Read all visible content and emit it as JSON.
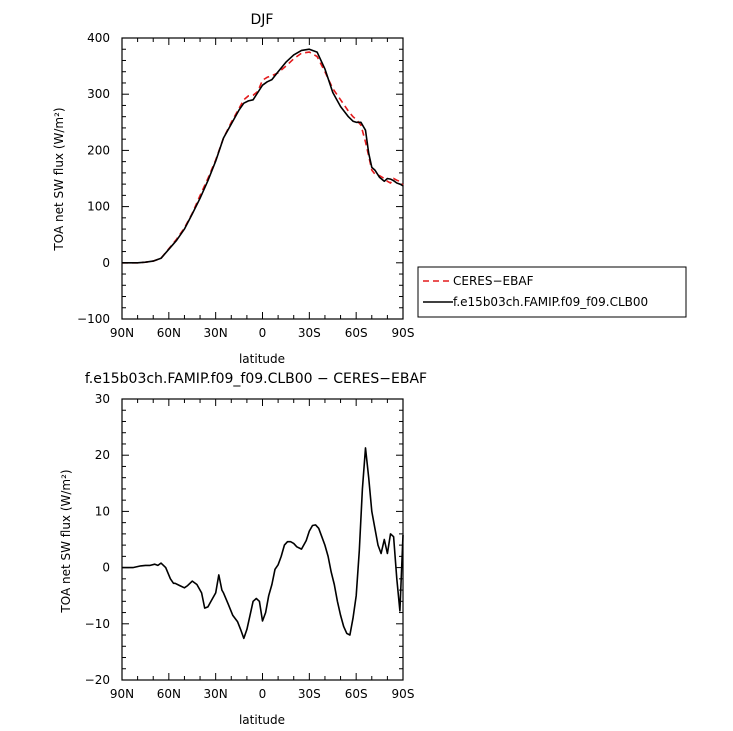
{
  "chart_data": [
    {
      "type": "line",
      "title": "DJF",
      "xlabel": "latitude",
      "ylabel": "TOA net SW flux (W/m²)",
      "xlim": [
        90,
        -90
      ],
      "ylim": [
        -100,
        400
      ],
      "x_ticks": [
        {
          "v": 90,
          "label": "90N"
        },
        {
          "v": 60,
          "label": "60N"
        },
        {
          "v": 30,
          "label": "30N"
        },
        {
          "v": 0,
          "label": "0"
        },
        {
          "v": -30,
          "label": "30S"
        },
        {
          "v": -60,
          "label": "60S"
        },
        {
          "v": -90,
          "label": "90S"
        }
      ],
      "y_ticks": [
        {
          "v": -100,
          "label": "−100"
        },
        {
          "v": 0,
          "label": "0"
        },
        {
          "v": 100,
          "label": "100"
        },
        {
          "v": 200,
          "label": "200"
        },
        {
          "v": 300,
          "label": "300"
        },
        {
          "v": 400,
          "label": "400"
        }
      ],
      "legend_position": "right",
      "series": [
        {
          "name": "CERES−EBAF",
          "color": "#e41a1c",
          "dash": "dashed",
          "x": [
            90,
            80,
            75,
            70,
            65,
            60,
            55,
            50,
            45,
            40,
            35,
            30,
            25,
            20,
            15,
            12,
            9,
            6,
            3,
            0,
            -3,
            -6,
            -10,
            -15,
            -20,
            -25,
            -30,
            -35,
            -40,
            -45,
            -50,
            -55,
            -58,
            -60,
            -63,
            -66,
            -68,
            -70,
            -72,
            -75,
            -78,
            -80,
            -82,
            -84,
            -86,
            -88,
            -90
          ],
          "y": [
            0,
            0,
            1,
            3,
            8,
            25,
            42,
            62,
            88,
            120,
            150,
            183,
            222,
            250,
            275,
            290,
            297,
            298,
            305,
            325,
            330,
            333,
            338,
            350,
            363,
            373,
            375,
            367,
            340,
            310,
            290,
            270,
            260,
            255,
            245,
            215,
            190,
            165,
            158,
            155,
            150,
            145,
            142,
            150,
            147,
            145,
            138
          ]
        },
        {
          "name": "f.e15b03ch.FAMIP.f09_f09.CLB00",
          "color": "#000000",
          "dash": "solid",
          "x": [
            90,
            80,
            75,
            70,
            65,
            60,
            55,
            50,
            45,
            40,
            35,
            30,
            25,
            20,
            15,
            12,
            9,
            6,
            3,
            0,
            -3,
            -6,
            -10,
            -15,
            -20,
            -25,
            -30,
            -35,
            -40,
            -45,
            -50,
            -55,
            -58,
            -60,
            -63,
            -66,
            -68,
            -70,
            -72,
            -75,
            -78,
            -80,
            -82,
            -84,
            -86,
            -88,
            -90
          ],
          "y": [
            0,
            0,
            1,
            3,
            8,
            24,
            40,
            60,
            87,
            115,
            146,
            181,
            222,
            247,
            272,
            284,
            288,
            290,
            303,
            316,
            322,
            326,
            340,
            357,
            370,
            378,
            380,
            375,
            345,
            303,
            278,
            260,
            252,
            250,
            250,
            236,
            195,
            170,
            165,
            152,
            145,
            150,
            149,
            146,
            142,
            140,
            137
          ]
        }
      ]
    },
    {
      "type": "line",
      "title": "f.e15b03ch.FAMIP.f09_f09.CLB00 − CERES−EBAF",
      "xlabel": "latitude",
      "ylabel": "TOA net SW flux (W/m²)",
      "xlim": [
        90,
        -90
      ],
      "ylim": [
        -20,
        30
      ],
      "x_ticks": [
        {
          "v": 90,
          "label": "90N"
        },
        {
          "v": 60,
          "label": "60N"
        },
        {
          "v": 30,
          "label": "30N"
        },
        {
          "v": 0,
          "label": "0"
        },
        {
          "v": -30,
          "label": "30S"
        },
        {
          "v": -60,
          "label": "60S"
        },
        {
          "v": -90,
          "label": "90S"
        }
      ],
      "y_ticks": [
        {
          "v": -20,
          "label": "−20"
        },
        {
          "v": -10,
          "label": "−10"
        },
        {
          "v": 0,
          "label": "0"
        },
        {
          "v": 10,
          "label": "10"
        },
        {
          "v": 20,
          "label": "20"
        },
        {
          "v": 30,
          "label": "30"
        }
      ],
      "series": [
        {
          "color": "#000000",
          "dash": "solid",
          "x": [
            90,
            83,
            78,
            75,
            72,
            69,
            67,
            65,
            62,
            59,
            57,
            56,
            53,
            50,
            48,
            45,
            42,
            39,
            37,
            35,
            33,
            30,
            28,
            26,
            25,
            22,
            19,
            16,
            14,
            12,
            10,
            8,
            6,
            4,
            2,
            0,
            -2,
            -4,
            -6,
            -8,
            -10,
            -12,
            -14,
            -16,
            -18,
            -20,
            -22,
            -25,
            -28,
            -30,
            -32,
            -34,
            -36,
            -38,
            -40,
            -42,
            -44,
            -46,
            -48,
            -50,
            -52,
            -54,
            -56,
            -58,
            -60,
            -62,
            -64,
            -66,
            -68,
            -70,
            -72,
            -74,
            -76,
            -78,
            -80,
            -82,
            -84,
            -86,
            -88,
            -90
          ],
          "y": [
            0,
            0,
            0.3,
            0.4,
            0.4,
            0.6,
            0.4,
            0.8,
            0,
            -2,
            -2.8,
            -2.8,
            -3.2,
            -3.6,
            -3.2,
            -2.4,
            -3,
            -4.5,
            -7.2,
            -7,
            -6,
            -4.5,
            -1.3,
            -4,
            -4.5,
            -6.5,
            -8.5,
            -9.6,
            -11,
            -12.6,
            -11,
            -8.5,
            -6,
            -5.5,
            -6,
            -9.5,
            -8,
            -5,
            -3,
            -0.3,
            0.5,
            2,
            4,
            4.6,
            4.6,
            4.3,
            3.7,
            3.3,
            4.8,
            6.5,
            7.5,
            7.6,
            7,
            5.5,
            4,
            2,
            -0.8,
            -3,
            -6,
            -8.5,
            -10.5,
            -11.7,
            -12,
            -9,
            -5,
            3,
            14,
            21.3,
            16,
            10,
            7,
            4,
            2.5,
            5,
            2.5,
            6,
            5.5,
            -2,
            -7.7,
            5.8
          ]
        }
      ]
    }
  ]
}
